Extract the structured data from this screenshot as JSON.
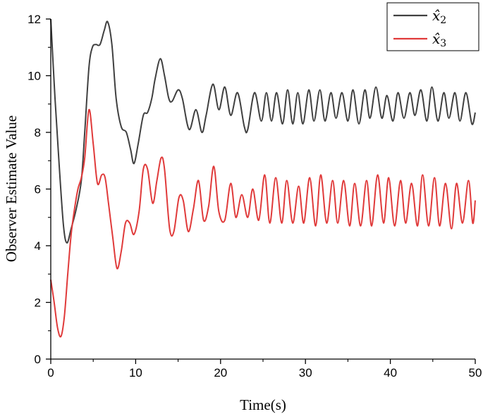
{
  "chart_data": {
    "type": "line",
    "title": "",
    "xlabel": "Time(s)",
    "ylabel": "Observer Estimate Value",
    "xlim": [
      0,
      50
    ],
    "ylim": [
      0,
      12
    ],
    "xticks": [
      0,
      10,
      20,
      30,
      40,
      50
    ],
    "yticks": [
      0,
      2,
      4,
      6,
      8,
      10,
      12
    ],
    "grid": false,
    "legend_position": "top-right",
    "series": [
      {
        "name": "x̂",
        "subscript": "2",
        "color": "#404040",
        "x": [
          0,
          0.5,
          1.0,
          1.5,
          1.9,
          2.4,
          3.0,
          3.6,
          4.0,
          4.5,
          4.9,
          5.3,
          5.8,
          6.3,
          6.7,
          7.2,
          7.7,
          8.3,
          8.9,
          9.4,
          9.8,
          10.3,
          10.9,
          11.4,
          11.9,
          12.3,
          12.9,
          13.4,
          13.9,
          14.3,
          15.0,
          15.5,
          16.3,
          17.1,
          17.8,
          18.3,
          19.1,
          19.8,
          20.5,
          21.2,
          22.0,
          22.8,
          23.2,
          24.0,
          24.8,
          25.4,
          26.0,
          26.6,
          27.3,
          27.9,
          28.5,
          29.1,
          29.7,
          30.4,
          31.0,
          31.7,
          32.3,
          33.0,
          33.6,
          34.3,
          35.0,
          35.6,
          36.3,
          37.0,
          37.6,
          38.3,
          39.0,
          39.6,
          40.3,
          40.9,
          41.6,
          42.3,
          42.9,
          43.6,
          44.3,
          44.9,
          45.6,
          46.3,
          46.9,
          47.6,
          48.2,
          48.9,
          49.6,
          50.0
        ],
        "values": [
          12.0,
          9.2,
          6.8,
          4.7,
          4.1,
          4.6,
          5.3,
          6.3,
          8.0,
          10.3,
          11.0,
          11.1,
          11.1,
          11.6,
          11.9,
          11.1,
          9.2,
          8.2,
          8.0,
          7.4,
          6.9,
          7.6,
          8.6,
          8.7,
          9.2,
          9.9,
          10.6,
          10.0,
          9.2,
          9.1,
          9.5,
          9.2,
          8.1,
          8.8,
          8.0,
          8.6,
          9.7,
          8.8,
          9.6,
          8.6,
          9.4,
          8.2,
          8.1,
          9.4,
          8.4,
          9.4,
          8.4,
          9.4,
          8.3,
          9.5,
          8.3,
          9.4,
          8.3,
          9.5,
          8.4,
          9.5,
          8.4,
          9.4,
          8.5,
          9.4,
          8.4,
          9.5,
          8.3,
          9.5,
          8.5,
          9.6,
          8.5,
          9.3,
          8.4,
          9.4,
          8.5,
          9.4,
          8.6,
          9.5,
          8.4,
          9.6,
          8.4,
          9.4,
          8.5,
          9.4,
          8.4,
          9.4,
          8.3,
          8.7
        ]
      },
      {
        "name": "x̂",
        "subscript": "3",
        "color": "#e03a3a",
        "x": [
          0,
          0.4,
          0.8,
          1.2,
          1.6,
          2.0,
          2.4,
          2.8,
          3.2,
          3.6,
          4.0,
          4.5,
          5.0,
          5.5,
          6.0,
          6.4,
          6.8,
          7.3,
          7.8,
          8.3,
          8.8,
          9.3,
          9.8,
          10.4,
          10.9,
          11.4,
          12.0,
          12.5,
          13.0,
          13.4,
          14.0,
          14.5,
          15.1,
          15.6,
          16.2,
          16.8,
          17.4,
          18.0,
          18.6,
          19.2,
          19.8,
          20.5,
          21.2,
          21.8,
          22.5,
          23.2,
          23.8,
          24.5,
          25.2,
          25.8,
          26.5,
          27.2,
          27.8,
          28.5,
          29.2,
          29.8,
          30.5,
          31.2,
          31.8,
          32.5,
          33.2,
          33.8,
          34.5,
          35.2,
          35.8,
          36.5,
          37.2,
          37.8,
          38.5,
          39.2,
          39.8,
          40.5,
          41.2,
          41.8,
          42.5,
          43.2,
          43.8,
          44.5,
          45.2,
          45.8,
          46.5,
          47.2,
          47.8,
          48.5,
          49.2,
          49.7,
          50.0
        ],
        "values": [
          2.8,
          2.0,
          1.1,
          0.8,
          1.5,
          3.0,
          4.4,
          5.3,
          6.0,
          6.4,
          7.1,
          8.8,
          7.6,
          6.2,
          6.5,
          6.4,
          5.5,
          4.3,
          3.2,
          3.8,
          4.8,
          4.8,
          4.4,
          5.2,
          6.7,
          6.7,
          5.5,
          6.3,
          7.1,
          6.7,
          4.6,
          4.5,
          5.7,
          5.6,
          4.5,
          5.3,
          6.3,
          4.9,
          5.4,
          6.8,
          5.2,
          4.9,
          6.2,
          5.0,
          5.8,
          5.0,
          6.0,
          4.9,
          6.5,
          4.8,
          6.4,
          4.8,
          6.3,
          4.8,
          6.1,
          4.8,
          6.4,
          4.7,
          6.5,
          4.8,
          6.3,
          4.8,
          6.3,
          4.7,
          6.2,
          4.7,
          6.3,
          4.7,
          6.5,
          4.8,
          6.4,
          4.7,
          6.3,
          4.8,
          6.2,
          4.7,
          6.5,
          4.7,
          6.4,
          4.7,
          6.2,
          4.6,
          6.2,
          4.8,
          6.3,
          4.8,
          5.6
        ]
      }
    ]
  }
}
